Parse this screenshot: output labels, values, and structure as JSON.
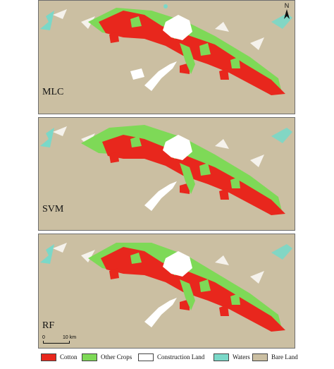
{
  "colors": {
    "background": "#cbbfa2",
    "cotton": "#e8271d",
    "other_crops": "#7ed957",
    "construction_land": "#ffffff",
    "waters": "#7ad8c8",
    "bare_land": "#cbbfa2"
  },
  "panels": [
    {
      "label": "MLC"
    },
    {
      "label": "SVM"
    },
    {
      "label": "RF"
    }
  ],
  "north_arrow": {
    "letter": "N"
  },
  "scale_bar": {
    "start": "0",
    "end": "10 km"
  },
  "legend": [
    {
      "label": "Cotton",
      "color": "#e8271d"
    },
    {
      "label": "Other Crops",
      "color": "#7ed957"
    },
    {
      "label": "Construction Land",
      "color": "#ffffff"
    },
    {
      "label": "Waters",
      "color": "#7ad8c8"
    },
    {
      "label": "Bare Land",
      "color": "#cbbfa2"
    }
  ]
}
